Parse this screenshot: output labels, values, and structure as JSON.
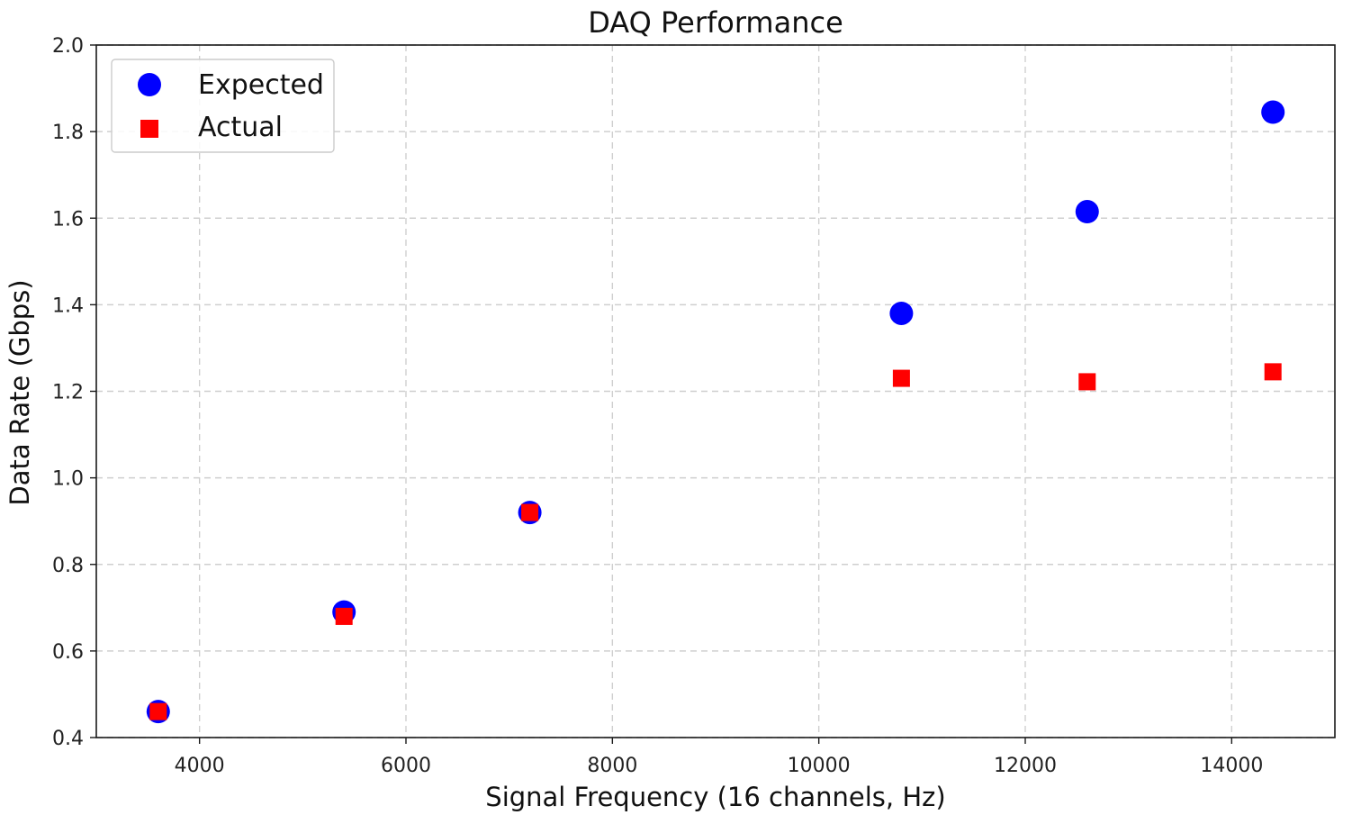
{
  "chart_data": {
    "type": "scatter",
    "title": "DAQ Performance",
    "xlabel": "Signal Frequency (16 channels, Hz)",
    "ylabel": "Data Rate (Gbps)",
    "xlim": [
      3000,
      15000
    ],
    "ylim": [
      0.4,
      2.0
    ],
    "x_ticks": [
      4000,
      6000,
      8000,
      10000,
      12000,
      14000
    ],
    "y_ticks": [
      "0.4",
      "0.6",
      "0.8",
      "1.0",
      "1.2",
      "1.4",
      "1.6",
      "1.8",
      "2.0"
    ],
    "grid": true,
    "legend_position": "top-left",
    "series": [
      {
        "name": "Expected",
        "marker": "circle",
        "color": "#0000ff",
        "points": [
          {
            "x": 3600,
            "y": 0.46
          },
          {
            "x": 5400,
            "y": 0.69
          },
          {
            "x": 7200,
            "y": 0.92
          },
          {
            "x": 10800,
            "y": 1.38
          },
          {
            "x": 12600,
            "y": 1.615
          },
          {
            "x": 14400,
            "y": 1.845
          }
        ]
      },
      {
        "name": "Actual",
        "marker": "square",
        "color": "#ff0000",
        "points": [
          {
            "x": 3600,
            "y": 0.46
          },
          {
            "x": 5400,
            "y": 0.68
          },
          {
            "x": 7200,
            "y": 0.92
          },
          {
            "x": 10800,
            "y": 1.23
          },
          {
            "x": 12600,
            "y": 1.222
          },
          {
            "x": 14400,
            "y": 1.245
          }
        ]
      }
    ]
  }
}
